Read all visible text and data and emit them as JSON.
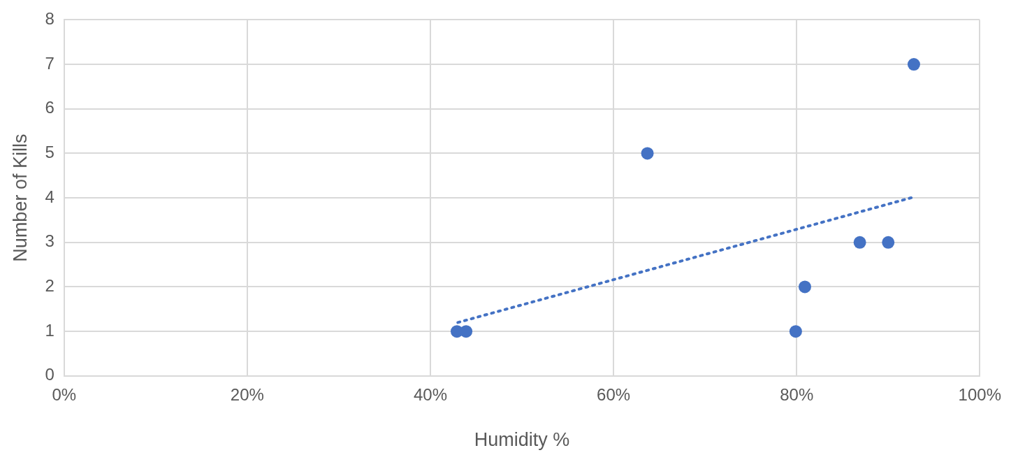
{
  "chart_data": {
    "type": "scatter",
    "xlabel": "Humidity %",
    "ylabel": "Number of Kills",
    "xlim": [
      0,
      100
    ],
    "xticks": [
      {
        "value": 0,
        "label": "0%"
      },
      {
        "value": 20,
        "label": "20%"
      },
      {
        "value": 40,
        "label": "40%"
      },
      {
        "value": 60,
        "label": "60%"
      },
      {
        "value": 80,
        "label": "80%"
      },
      {
        "value": 100,
        "label": "100%"
      }
    ],
    "ylim": [
      0,
      8
    ],
    "yticks": [
      0,
      1,
      2,
      3,
      4,
      5,
      6,
      7,
      8
    ],
    "grid": true,
    "legend": false,
    "series": [
      {
        "type": "scatter",
        "color": "#4472c4",
        "marker": "circle",
        "x": [
          42.9,
          43.9,
          63.7,
          79.9,
          80.9,
          86.9,
          90.0,
          92.8
        ],
        "values": [
          1,
          1,
          5,
          1,
          2,
          3,
          3,
          7
        ]
      },
      {
        "type": "line",
        "color": "#4472c4",
        "marker": "none",
        "line_style": "dotted",
        "x": [
          43,
          93
        ],
        "values": [
          1.2,
          4.03
        ]
      }
    ]
  }
}
